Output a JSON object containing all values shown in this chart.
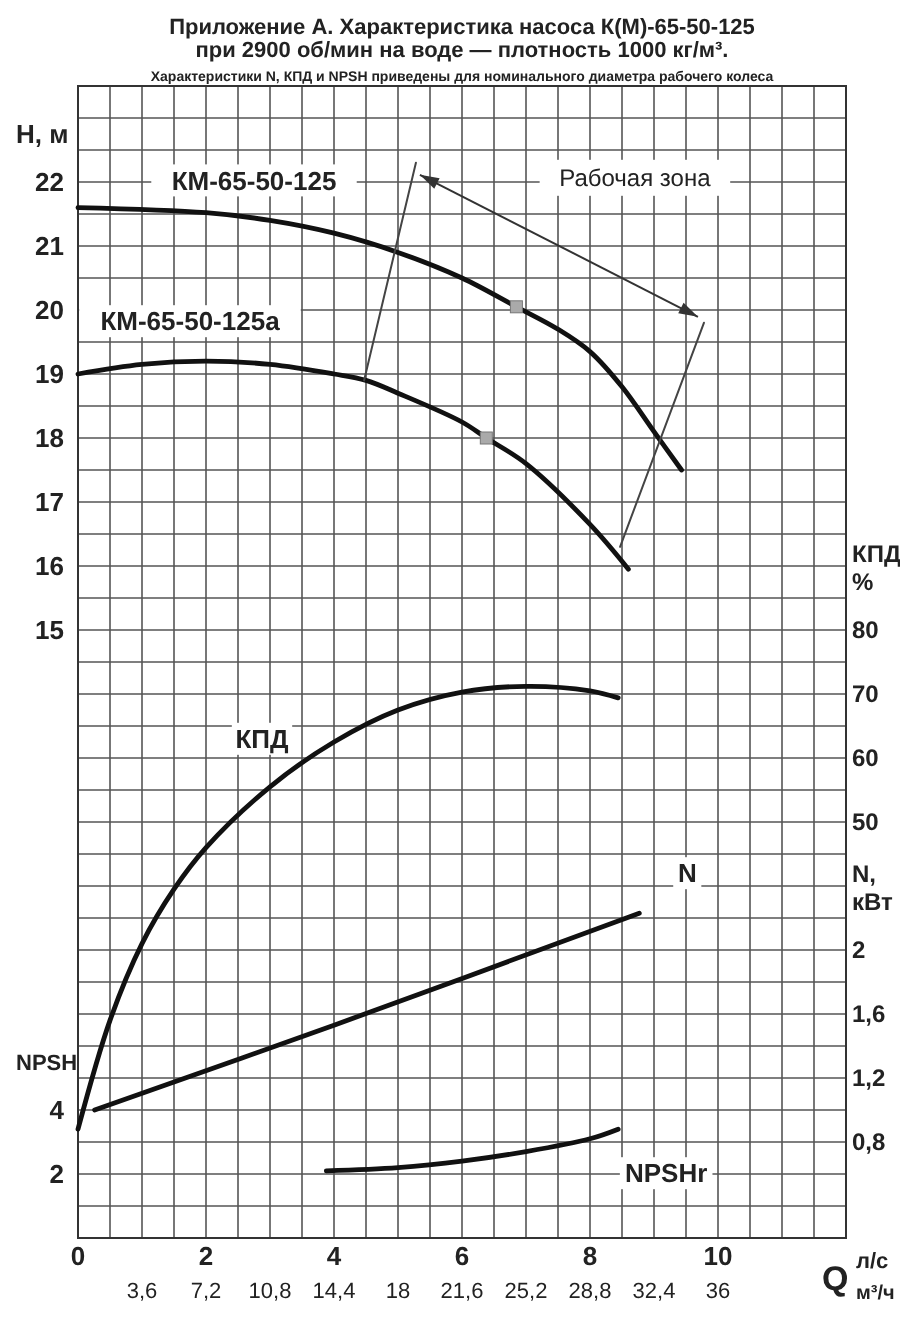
{
  "chart_data": [
    {
      "type": "line",
      "title": "Приложение А. Характеристика насоса К(М)-65-50-125\nпри 2900 об/мин на воде — плотность 1000 кг/м³.",
      "subtitle": "Характеристики N, КПД и NPSH приведены для номинального диаметра рабочего колеса",
      "xlabel": "л/с",
      "x2label": "м³/ч",
      "ylabel": "H, м",
      "y2label": "КПД %",
      "y3label": "N, кВт",
      "annotations": [
        "Рабочая зона",
        "Q"
      ],
      "xlim": [
        0,
        12
      ],
      "xticks": [
        0,
        2,
        4,
        6,
        8,
        10
      ],
      "x2lim": [
        0,
        43.2
      ],
      "x2ticks": [
        {
          "value": 3.6,
          "label": "3,6"
        },
        {
          "value": 7.2,
          "label": "7,2"
        },
        {
          "value": 10.8,
          "label": "10,8"
        },
        {
          "value": 14.4,
          "label": "14,4"
        },
        18,
        {
          "value": 21.6,
          "label": "21,6"
        },
        {
          "value": 25.2,
          "label": "25,2"
        },
        {
          "value": 28.8,
          "label": "28,8"
        },
        {
          "value": 32.4,
          "label": "32,4"
        },
        36
      ],
      "ylim": [
        5.5,
        23.5
      ],
      "yticks": [
        15,
        16,
        17,
        18,
        19,
        20,
        21,
        22
      ],
      "y2lim": [
        -15,
        165
      ],
      "y2ticks": [
        50,
        60,
        70,
        80
      ],
      "y3lim": [
        0.2,
        7.4
      ],
      "y3ticks": [
        {
          "value": 0.8,
          "label": "0,8"
        },
        {
          "value": 1.2,
          "label": "1,2"
        },
        {
          "value": 1.6,
          "label": "1,6"
        },
        2
      ],
      "grid": true,
      "line_style": "solid",
      "marker": "none",
      "series": [
        {
          "name": "КМ-65-50-125",
          "color": "#111111",
          "x": [
            0,
            2,
            3,
            4,
            5,
            6,
            6.85,
            7.5,
            8,
            8.5,
            9,
            9.43
          ],
          "values": [
            21.6,
            21.52,
            21.4,
            21.2,
            20.9,
            20.5,
            20.05,
            19.7,
            19.35,
            18.8,
            18.1,
            17.5
          ]
        },
        {
          "name": "КМ-65-50-125а",
          "color": "#111111",
          "x": [
            0,
            1,
            2,
            3,
            4,
            4.5,
            5,
            6,
            6.38,
            7,
            8,
            8.6
          ],
          "values": [
            19.0,
            19.15,
            19.2,
            19.15,
            19.0,
            18.9,
            18.7,
            18.25,
            18.0,
            17.6,
            16.65,
            15.95
          ]
        },
        {
          "type": "scatter",
          "marker": "square",
          "color": "#aaaaaa",
          "x": [
            6.85,
            6.38
          ],
          "values": [
            20.05,
            18.0
          ]
        },
        {
          "color": "#444444",
          "x": [
            5.28,
            4.47
          ],
          "values": [
            22.3,
            18.9
          ]
        },
        {
          "color": "#444444",
          "x": [
            9.78,
            8.47
          ],
          "values": [
            19.8,
            16.3
          ]
        },
        {
          "name": "КПД",
          "axis": "y2",
          "color": "#111111",
          "x": [
            0,
            0.5,
            1,
            1.5,
            2,
            3,
            4,
            5,
            6,
            7,
            8,
            8.44
          ],
          "values": [
            2,
            19,
            31,
            39.5,
            46,
            55.5,
            62.5,
            67.5,
            70.3,
            71.2,
            70.5,
            69.4
          ]
        },
        {
          "name": "N",
          "axis": "y3",
          "color": "#111111",
          "x": [
            0.26,
            4,
            8.77
          ],
          "values": [
            1.0,
            1.53,
            2.23
          ]
        }
      ]
    },
    {
      "type": "line",
      "ylabel": "NPSH",
      "xlim": [
        0,
        12
      ],
      "ylim": [
        0,
        36
      ],
      "yticks": [
        2,
        4
      ],
      "tick_labels": "y",
      "line_style": "solid",
      "marker": "none",
      "series": [
        {
          "name": "NPSHr",
          "color": "#111111",
          "x": [
            3.88,
            5,
            6,
            7,
            8,
            8.44
          ],
          "values": [
            2.1,
            2.2,
            2.4,
            2.7,
            3.1,
            3.4
          ]
        }
      ]
    }
  ]
}
